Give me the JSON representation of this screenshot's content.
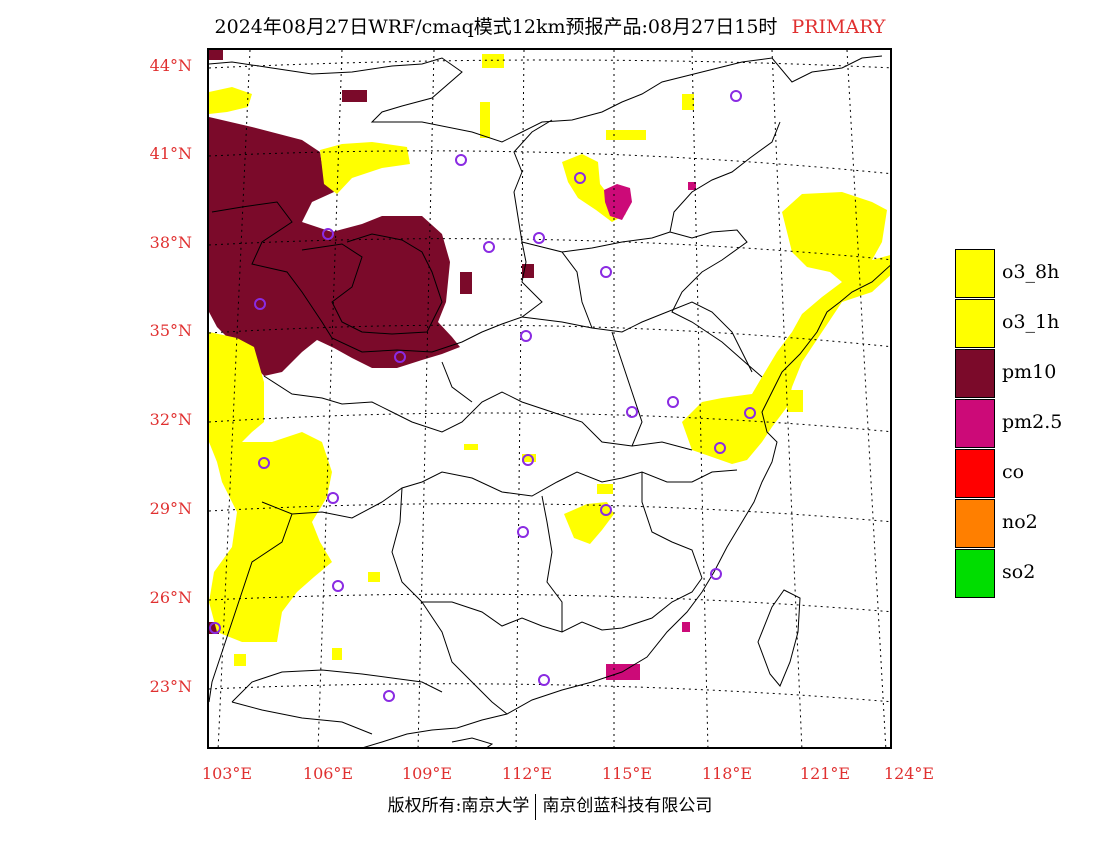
{
  "header": {
    "title": "2024年08月27日WRF/cmaq模式12km预报产品:08月27日15时",
    "tag": "PRIMARY"
  },
  "axes": {
    "lat_labels": [
      "44°N",
      "41°N",
      "38°N",
      "35°N",
      "32°N",
      "29°N",
      "26°N",
      "23°N"
    ],
    "lon_labels": [
      "103°E",
      "106°E",
      "109°E",
      "112°E",
      "115°E",
      "118°E",
      "121°E",
      "124°E"
    ]
  },
  "legend": {
    "items": [
      {
        "label": "o3_8h",
        "color": "#ffff00"
      },
      {
        "label": "o3_1h",
        "color": "#ffff00"
      },
      {
        "label": "pm10",
        "color": "#7b0a2a"
      },
      {
        "label": "pm2.5",
        "color": "#cc0a78"
      },
      {
        "label": "co",
        "color": "#ff0000"
      },
      {
        "label": "no2",
        "color": "#ff7f00"
      },
      {
        "label": "so2",
        "color": "#00dd00"
      }
    ]
  },
  "footer": {
    "left": "版权所有:南京大学",
    "right": "南京创蓝科技有限公司"
  },
  "colors": {
    "axis_label": "#e03030",
    "station_marker": "#8a2be2",
    "boundary": "#000000"
  }
}
